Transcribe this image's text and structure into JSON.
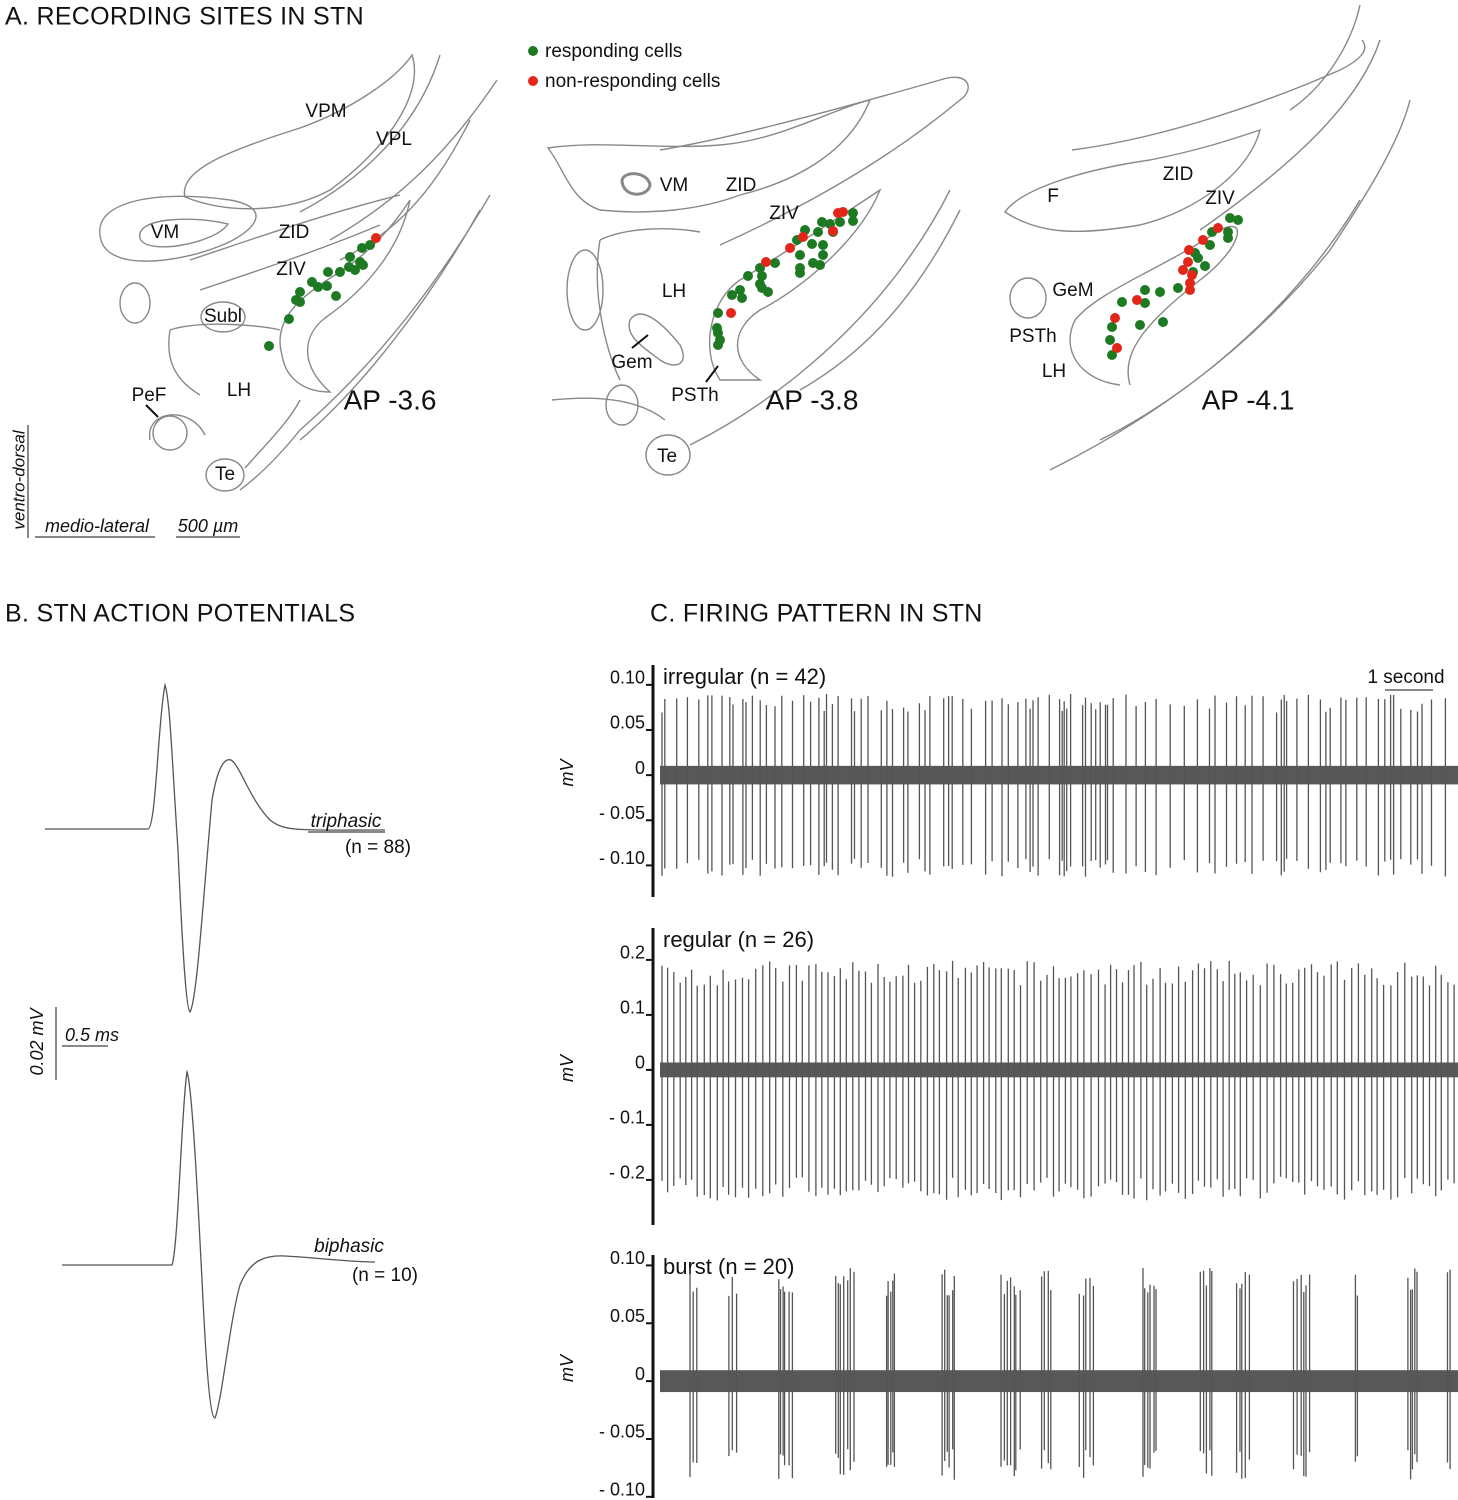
{
  "panel_a": {
    "title": "A. RECORDING SITES IN STN",
    "legend": [
      {
        "label": "responding cells",
        "color": "#1e7a22"
      },
      {
        "label": "non-responding cells",
        "color": "#e3261a"
      }
    ],
    "sections": [
      {
        "label": "AP -3.6",
        "regions": [
          "VPM",
          "VPL",
          "VM",
          "ZID",
          "ZIV",
          "Subl",
          "LH",
          "PeF",
          "Te"
        ]
      },
      {
        "label": "AP -3.8",
        "regions": [
          "VM",
          "ZID",
          "ZIV",
          "LH",
          "Gem",
          "PSTh",
          "Te"
        ]
      },
      {
        "label": "AP -4.1",
        "regions": [
          "F",
          "ZID",
          "ZIV",
          "GeM",
          "PSTh",
          "LH"
        ]
      }
    ],
    "axes": {
      "vertical": "ventro-dorsal",
      "horizontal": "medio-lateral",
      "scale": "500 µm"
    }
  },
  "panel_b": {
    "title": "B. STN ACTION POTENTIALS",
    "waveforms": [
      {
        "name": "triphasic",
        "count": "(n = 88)"
      },
      {
        "name": "biphasic",
        "count": "(n = 10)"
      }
    ],
    "scale_y": "0.02 mV",
    "scale_x": "0.5 ms"
  },
  "panel_c": {
    "title": "C. FIRING PATTERN IN STN",
    "scale": "1 second",
    "traces": [
      {
        "name": "irregular (n = 42)",
        "axis_label": "mV",
        "ylim": [
          -0.135,
          0.122
        ],
        "yticks": [
          {
            "value": 0.1,
            "label": "0.10"
          },
          {
            "value": 0.05,
            "label": "0.05"
          },
          0,
          {
            "value": -0.05,
            "label": "- 0.05"
          },
          {
            "value": -0.1,
            "label": "- 0.10"
          }
        ]
      },
      {
        "name": "regular (n = 26)",
        "axis_label": "mV",
        "ylim": [
          -0.282,
          0.258
        ],
        "yticks": [
          0.2,
          0.1,
          0,
          {
            "value": -0.1,
            "label": "- 0.1"
          },
          {
            "value": -0.2,
            "label": "- 0.2"
          }
        ]
      },
      {
        "name": "burst (n = 20)",
        "axis_label": "mV",
        "ylim": [
          -0.101,
          0.109
        ],
        "yticks": [
          {
            "value": 0.1,
            "label": "0.10"
          },
          {
            "value": 0.05,
            "label": "0.05"
          },
          0,
          {
            "value": -0.05,
            "label": "- 0.05"
          },
          {
            "value": -0.1,
            "label": "- 0.10"
          }
        ]
      }
    ]
  }
}
